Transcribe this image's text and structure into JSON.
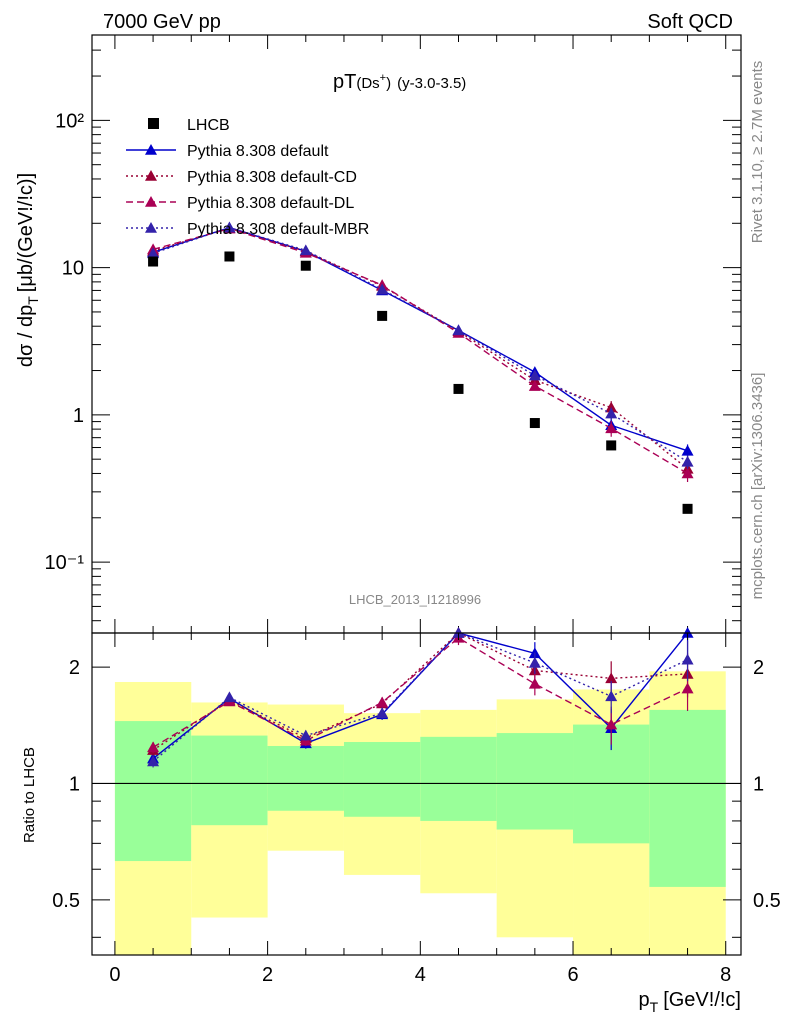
{
  "header": {
    "left": "7000 GeV pp",
    "right": "Soft QCD"
  },
  "side_text": {
    "rivet": "Rivet 3.1.10, ≥ 2.7M events",
    "source": "mcplots.cern.ch [arXiv:1306.3436]"
  },
  "chart_data": [
    {
      "type": "scatter",
      "title_main": "pT",
      "title_paren": "(Ds",
      "title_sup": "+",
      "title_close": ")",
      "title_range": "(y-3.0-3.5)",
      "watermark": "LHCB_2013_I1218996",
      "ylabel_main": "dσ / dp",
      "ylabel_sub": "T",
      "ylabel_units": "[μb/(GeV!/!c)]",
      "yscale": "log",
      "ylim": [
        0.033,
        380
      ],
      "xlim": [
        -0.3,
        8.2
      ],
      "ytick_labels": [
        "10⁻¹",
        "1",
        "10",
        "10²"
      ],
      "ytick_values": [
        0.1,
        1,
        10,
        100
      ],
      "x": [
        0.5,
        1.5,
        2.5,
        3.5,
        4.5,
        5.5,
        6.5,
        7.5
      ],
      "series": [
        {
          "name": "LHCB",
          "marker": "square",
          "color": "#000000",
          "values": [
            11.0,
            11.9,
            10.3,
            4.7,
            1.5,
            0.88,
            0.62,
            0.23
          ]
        },
        {
          "name": "Pythia 8.308 default",
          "marker": "triangle",
          "line": "solid",
          "color": "#0000cc",
          "values": [
            12.7,
            18.7,
            12.9,
            7.0,
            3.75,
            1.95,
            0.85,
            0.57
          ],
          "errors": [
            0.4,
            0.5,
            0.4,
            0.2,
            0.12,
            0.12,
            0.1,
            0.06
          ]
        },
        {
          "name": "Pythia 8.308 default-CD",
          "marker": "triangle",
          "line": "dotted",
          "color": "#990033",
          "values": [
            13.0,
            18.5,
            12.9,
            7.5,
            3.7,
            1.72,
            1.12,
            0.43
          ],
          "errors": [
            0.4,
            0.5,
            0.4,
            0.25,
            0.12,
            0.12,
            0.12,
            0.05
          ]
        },
        {
          "name": "Pythia 8.308 default-DL",
          "marker": "triangle",
          "line": "dashed",
          "color": "#aa0055",
          "values": [
            13.3,
            18.4,
            12.6,
            7.6,
            3.6,
            1.57,
            0.81,
            0.4
          ],
          "errors": [
            0.4,
            0.5,
            0.4,
            0.25,
            0.12,
            0.1,
            0.1,
            0.05
          ]
        },
        {
          "name": "Pythia 8.308 default-MBR",
          "marker": "triangle",
          "line": "dotted",
          "color": "#3322aa",
          "values": [
            12.5,
            18.7,
            13.1,
            7.1,
            3.75,
            1.85,
            1.02,
            0.48
          ],
          "errors": [
            0.4,
            0.5,
            0.4,
            0.2,
            0.12,
            0.12,
            0.1,
            0.05
          ]
        }
      ]
    },
    {
      "type": "scatter",
      "ylabel": "Ratio to LHCB",
      "xlabel_main": "p",
      "xlabel_sub": "T",
      "xlabel_units": "[GeV!/!c]",
      "yscale": "log",
      "ylim": [
        0.36,
        2.45
      ],
      "xlim": [
        -0.3,
        8.2
      ],
      "ytick_labels": [
        "0.5",
        "1",
        "2"
      ],
      "ytick_values": [
        0.5,
        1,
        2
      ],
      "xtick_labels": [
        "0",
        "2",
        "4",
        "6",
        "8"
      ],
      "xtick_values": [
        0,
        2,
        4,
        6,
        8
      ],
      "reference": 1,
      "bins": [
        [
          0,
          1
        ],
        [
          1,
          2
        ],
        [
          2,
          3
        ],
        [
          3,
          4
        ],
        [
          4,
          5
        ],
        [
          5,
          6
        ],
        [
          6,
          7
        ],
        [
          7,
          8
        ]
      ],
      "band_yellow": [
        [
          0.36,
          1.83
        ],
        [
          0.45,
          1.62
        ],
        [
          0.67,
          1.6
        ],
        [
          0.58,
          1.52
        ],
        [
          0.52,
          1.55
        ],
        [
          0.4,
          1.65
        ],
        [
          0.36,
          1.75
        ],
        [
          0.36,
          1.95
        ]
      ],
      "band_green": [
        [
          0.63,
          1.45
        ],
        [
          0.78,
          1.33
        ],
        [
          0.85,
          1.25
        ],
        [
          0.82,
          1.28
        ],
        [
          0.8,
          1.32
        ],
        [
          0.76,
          1.35
        ],
        [
          0.7,
          1.42
        ],
        [
          0.54,
          1.55
        ]
      ],
      "x": [
        0.5,
        1.5,
        2.5,
        3.5,
        4.5,
        5.5,
        6.5,
        7.5
      ],
      "series": [
        {
          "name": "Pythia 8.308 default",
          "values": [
            1.16,
            1.66,
            1.27,
            1.51,
            2.48,
            2.17,
            1.39,
            2.45
          ],
          "errors": [
            0.04,
            0.04,
            0.04,
            0.05,
            0.1,
            0.15,
            0.17,
            0.3
          ]
        },
        {
          "name": "Pythia 8.308 default-CD",
          "values": [
            1.22,
            1.64,
            1.31,
            1.61,
            2.45,
            1.96,
            1.87,
            1.92
          ],
          "errors": [
            0.04,
            0.04,
            0.04,
            0.05,
            0.1,
            0.14,
            0.2,
            0.25
          ]
        },
        {
          "name": "Pythia 8.308 default-DL",
          "values": [
            1.24,
            1.63,
            1.29,
            1.62,
            2.38,
            1.81,
            1.42,
            1.76
          ],
          "errors": [
            0.04,
            0.04,
            0.04,
            0.05,
            0.1,
            0.12,
            0.16,
            0.22
          ]
        },
        {
          "name": "Pythia 8.308 default-MBR",
          "values": [
            1.14,
            1.67,
            1.33,
            1.52,
            2.48,
            2.05,
            1.68,
            2.09
          ],
          "errors": [
            0.04,
            0.04,
            0.04,
            0.05,
            0.1,
            0.13,
            0.16,
            0.25
          ]
        }
      ]
    }
  ]
}
